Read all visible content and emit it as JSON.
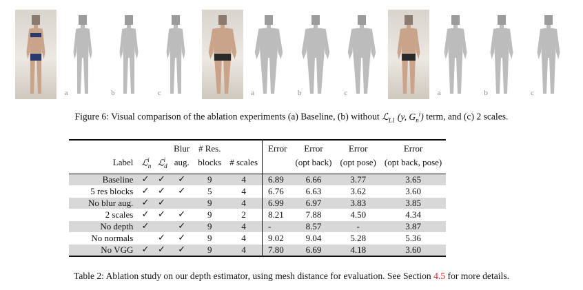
{
  "figure": {
    "panels": [
      {
        "kind": "photo",
        "label": "",
        "figure": "female"
      },
      {
        "kind": "render",
        "label": "a",
        "figure": "female"
      },
      {
        "kind": "render",
        "label": "b",
        "figure": "female"
      },
      {
        "kind": "render",
        "label": "c",
        "figure": "female"
      },
      {
        "kind": "photo",
        "label": "",
        "figure": "heavy-male"
      },
      {
        "kind": "render",
        "label": "a",
        "figure": "heavy-male"
      },
      {
        "kind": "render",
        "label": "b",
        "figure": "heavy-male"
      },
      {
        "kind": "render",
        "label": "c",
        "figure": "heavy-male"
      },
      {
        "kind": "photo",
        "label": "",
        "figure": "male"
      },
      {
        "kind": "render",
        "label": "a",
        "figure": "male"
      },
      {
        "kind": "render",
        "label": "b",
        "figure": "male"
      },
      {
        "kind": "render",
        "label": "c",
        "figure": "male"
      }
    ],
    "caption_prefix": "Figure 6: Visual comparison of the ablation experiments (a) Baseline, (b) without",
    "caption_math": "ℒ_L1 (y, G_n^i)",
    "caption_suffix": "term, and (c) 2 scales."
  },
  "table": {
    "header_top": [
      "",
      "",
      "",
      "Blur",
      "# Res.",
      "",
      "Error",
      "Error",
      "Error",
      "Error"
    ],
    "header_bottom": [
      "Label",
      "ℒ_n^i",
      "ℒ_d^i",
      "aug.",
      "blocks",
      "# scales",
      "",
      "(opt back)",
      "(opt pose)",
      "(opt back, pose)"
    ],
    "rows": [
      {
        "label": "Baseline",
        "ln": "✓",
        "ld": "✓",
        "blur": "✓",
        "blocks": "9",
        "scales": "4",
        "error": "6.89",
        "opt_back": "6.66",
        "opt_pose": "3.77",
        "opt_back_pose": "3.65"
      },
      {
        "label": "5 res blocks",
        "ln": "✓",
        "ld": "✓",
        "blur": "✓",
        "blocks": "5",
        "scales": "4",
        "error": "6.76",
        "opt_back": "6.63",
        "opt_pose": "3.62",
        "opt_back_pose": "3.60"
      },
      {
        "label": "No blur aug.",
        "ln": "✓",
        "ld": "✓",
        "blur": "",
        "blocks": "9",
        "scales": "4",
        "error": "6.99",
        "opt_back": "6.97",
        "opt_pose": "3.83",
        "opt_back_pose": "3.85"
      },
      {
        "label": "2 scales",
        "ln": "✓",
        "ld": "✓",
        "blur": "✓",
        "blocks": "9",
        "scales": "2",
        "error": "8.21",
        "opt_back": "7.88",
        "opt_pose": "4.50",
        "opt_back_pose": "4.34"
      },
      {
        "label": "No depth",
        "ln": "✓",
        "ld": "",
        "blur": "✓",
        "blocks": "9",
        "scales": "4",
        "error": "-",
        "opt_back": "8.57",
        "opt_pose": "-",
        "opt_back_pose": "3.87"
      },
      {
        "label": "No normals",
        "ln": "",
        "ld": "✓",
        "blur": "✓",
        "blocks": "9",
        "scales": "4",
        "error": "9.02",
        "opt_back": "9.04",
        "opt_pose": "5.28",
        "opt_back_pose": "5.36"
      },
      {
        "label": "No VGG",
        "ln": "✓",
        "ld": "✓",
        "blur": "✓",
        "blocks": "9",
        "scales": "4",
        "error": "7.80",
        "opt_back": "6.69",
        "opt_pose": "4.18",
        "opt_back_pose": "3.60"
      }
    ],
    "caption_prefix": "Table 2: Ablation study on our depth estimator, using mesh distance for evaluation. See Section",
    "caption_ref": "4.5",
    "caption_suffix": "for more details."
  }
}
